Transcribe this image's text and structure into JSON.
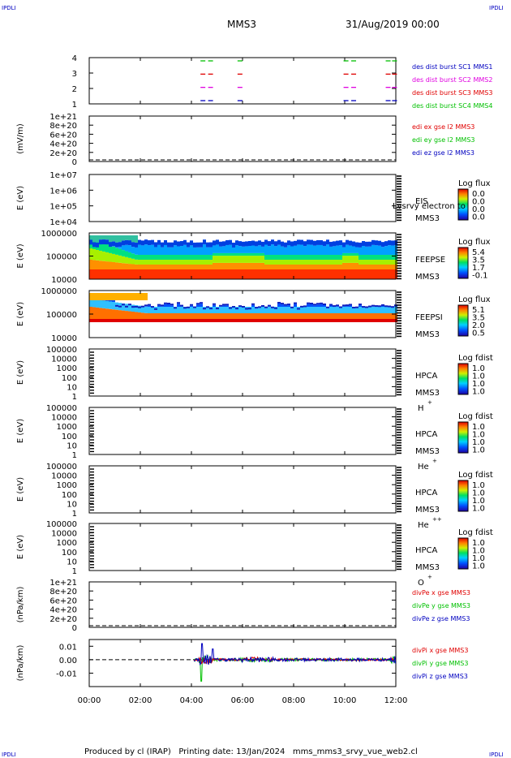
{
  "corner_labels": {
    "top_left": "IPDLI",
    "top_right": "IPDLI",
    "bottom_left": "IPDLI",
    "bottom_right": "IPDLI"
  },
  "header": {
    "spacecraft": "MMS3",
    "date": "31/Aug/2019 00:00"
  },
  "footer": {
    "text": "Produced by cl (IRAP)   Printing date: 13/Jan/2024   mms_mms3_srvy_vue_web2.cl"
  },
  "colors": {
    "red": "#e00000",
    "green": "#00c000",
    "blue": "#0000c0",
    "magenta": "#e000e0"
  },
  "time_axis": {
    "labels": [
      "00:00",
      "02:00",
      "04:00",
      "06:00",
      "08:00",
      "10:00",
      "12:00"
    ],
    "range_hours": [
      0,
      12
    ]
  },
  "chart_data": [
    {
      "type": "scatter",
      "panel": "burst",
      "yticks": [
        "1",
        "2",
        "3",
        "4"
      ],
      "legend": [
        {
          "text": "des dist burst SC1 MMS1",
          "color": "#0000c0"
        },
        {
          "text": "des dist burst SC2 MMS2",
          "color": "#e000e0"
        },
        {
          "text": "des dist burst SC3 MMS3",
          "color": "#e00000"
        },
        {
          "text": "des dist burst SC4 MMS4",
          "color": "#00c000"
        }
      ],
      "series": [
        {
          "level": 4,
          "color": "#00c000",
          "x": [
            4.45,
            4.75,
            5.9,
            10.05,
            10.35,
            11.7,
            11.95
          ]
        },
        {
          "level": 3,
          "color": "#e00000",
          "x": [
            4.45,
            4.75,
            5.9,
            10.05,
            10.35,
            11.7,
            11.95
          ]
        },
        {
          "level": 2,
          "color": "#e000e0",
          "x": [
            4.45,
            4.75,
            5.9,
            10.05,
            10.35,
            11.7,
            11.95
          ]
        },
        {
          "level": 1,
          "color": "#0000c0",
          "x": [
            4.45,
            4.75,
            5.9,
            10.05,
            10.35,
            11.7,
            11.95
          ]
        }
      ]
    },
    {
      "type": "line",
      "panel": "edi",
      "ylabel": "(mV/m)",
      "yticks": [
        "0",
        "2e+20",
        "4e+20",
        "6e+20",
        "8e+20",
        "1e+21"
      ],
      "legend": [
        {
          "text": "edi ex gse l2 MMS3",
          "color": "#e00000"
        },
        {
          "text": "edi ey gse l2 MMS3",
          "color": "#00c000"
        },
        {
          "text": "edi ez gse l2 MMS3",
          "color": "#0000c0"
        }
      ]
    },
    {
      "type": "heatmap",
      "panel": "eis",
      "ylabel": "E (eV)",
      "yticks": [
        "1e+04",
        "1e+05",
        "1e+06",
        "1e+07"
      ],
      "instrument": "EIS",
      "spacecraft": "MMS3",
      "overlay_text": "Lvsrvy electron to",
      "colorbar": {
        "title": "Log flux",
        "ticks": [
          "0.0",
          "0.0",
          "0.0",
          "0.0"
        ]
      }
    },
    {
      "type": "heatmap",
      "panel": "feepse",
      "ylabel": "E (eV)",
      "yticks": [
        "10000",
        "100000",
        "1000000"
      ],
      "instrument": "FEEPSE",
      "spacecraft": "MMS3",
      "colorbar": {
        "title": "Log flux",
        "ticks": [
          "5.4",
          "3.5",
          "1.7",
          "-0.1"
        ]
      }
    },
    {
      "type": "heatmap",
      "panel": "feepsi",
      "ylabel": "E (eV)",
      "yticks": [
        "10000",
        "100000",
        "1000000"
      ],
      "instrument": "FEEPSI",
      "spacecraft": "MMS3",
      "colorbar": {
        "title": "Log flux",
        "ticks": [
          "5.1",
          "3.5",
          "2.0",
          "0.5"
        ]
      }
    },
    {
      "type": "heatmap",
      "panel": "hpca_h",
      "ylabel": "E (eV)",
      "yticks": [
        "1",
        "10",
        "100",
        "1000",
        "10000",
        "100000"
      ],
      "instrument": "HPCA",
      "spacecraft": "MMS3",
      "species": "H",
      "charge": "+",
      "colorbar": {
        "title": "Log fdist",
        "ticks": [
          "1.0",
          "1.0",
          "1.0",
          "1.0"
        ]
      }
    },
    {
      "type": "heatmap",
      "panel": "hpca_he",
      "ylabel": "E (eV)",
      "yticks": [
        "1",
        "10",
        "100",
        "1000",
        "10000",
        "100000"
      ],
      "instrument": "HPCA",
      "spacecraft": "MMS3",
      "species": "He",
      "charge": "+",
      "colorbar": {
        "title": "Log fdist",
        "ticks": [
          "1.0",
          "1.0",
          "1.0",
          "1.0"
        ]
      }
    },
    {
      "type": "heatmap",
      "panel": "hpca_hepp",
      "ylabel": "E (eV)",
      "yticks": [
        "1",
        "10",
        "100",
        "1000",
        "10000",
        "100000"
      ],
      "instrument": "HPCA",
      "spacecraft": "MMS3",
      "species": "He",
      "charge": "++",
      "colorbar": {
        "title": "Log fdist",
        "ticks": [
          "1.0",
          "1.0",
          "1.0",
          "1.0"
        ]
      }
    },
    {
      "type": "heatmap",
      "panel": "hpca_o",
      "ylabel": "E (eV)",
      "yticks": [
        "1",
        "10",
        "100",
        "1000",
        "10000",
        "100000"
      ],
      "instrument": "HPCA",
      "spacecraft": "MMS3",
      "species": "O",
      "charge": "+",
      "colorbar": {
        "title": "Log fdist",
        "ticks": [
          "1.0",
          "1.0",
          "1.0",
          "1.0"
        ]
      }
    },
    {
      "type": "line",
      "panel": "divpe",
      "ylabel": "(nPa/km)",
      "yticks": [
        "0",
        "2e+20",
        "4e+20",
        "6e+20",
        "8e+20",
        "1e+21"
      ],
      "legend": [
        {
          "text": "divPe x gse MMS3",
          "color": "#e00000"
        },
        {
          "text": "divPe y gse MMS3",
          "color": "#00c000"
        },
        {
          "text": "divPe z gse MMS3",
          "color": "#0000c0"
        }
      ]
    },
    {
      "type": "line",
      "panel": "divpi",
      "ylabel": "(nPa/km)",
      "yticks": [
        "-0.01",
        "0.00",
        "0.01"
      ],
      "ylim": [
        -0.02,
        0.015
      ],
      "legend": [
        {
          "text": "divPi x gse MMS3",
          "color": "#e00000"
        },
        {
          "text": "divPi y gse MMS3",
          "color": "#00c000"
        },
        {
          "text": "divPi z gse MMS3",
          "color": "#0000c0"
        }
      ]
    }
  ]
}
